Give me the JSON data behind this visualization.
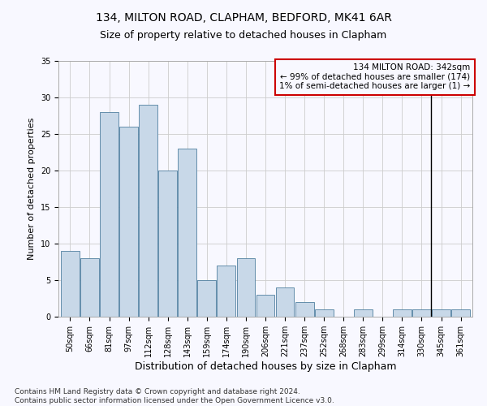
{
  "title": "134, MILTON ROAD, CLAPHAM, BEDFORD, MK41 6AR",
  "subtitle": "Size of property relative to detached houses in Clapham",
  "xlabel": "Distribution of detached houses by size in Clapham",
  "ylabel": "Number of detached properties",
  "bar_labels": [
    "50sqm",
    "66sqm",
    "81sqm",
    "97sqm",
    "112sqm",
    "128sqm",
    "143sqm",
    "159sqm",
    "174sqm",
    "190sqm",
    "206sqm",
    "221sqm",
    "237sqm",
    "252sqm",
    "268sqm",
    "283sqm",
    "299sqm",
    "314sqm",
    "330sqm",
    "345sqm",
    "361sqm"
  ],
  "bar_heights": [
    9,
    8,
    28,
    26,
    29,
    20,
    23,
    5,
    7,
    8,
    3,
    4,
    2,
    1,
    0,
    1,
    0,
    1,
    1,
    1,
    1
  ],
  "bar_color": "#c8d8e8",
  "bar_edge_color": "#5080a0",
  "subject_line_color": "#000000",
  "annotation_line1": "134 MILTON ROAD: 342sqm",
  "annotation_line2": "← 99% of detached houses are smaller (174)",
  "annotation_line3": "1% of semi-detached houses are larger (1) →",
  "annotation_box_edgecolor": "#cc0000",
  "ylim": [
    0,
    35
  ],
  "yticks": [
    0,
    5,
    10,
    15,
    20,
    25,
    30,
    35
  ],
  "grid_color": "#cccccc",
  "background_color": "#f8f8ff",
  "footnote": "Contains HM Land Registry data © Crown copyright and database right 2024.\nContains public sector information licensed under the Open Government Licence v3.0.",
  "title_fontsize": 10,
  "subtitle_fontsize": 9,
  "xlabel_fontsize": 9,
  "ylabel_fontsize": 8,
  "tick_fontsize": 7,
  "annotation_fontsize": 7.5,
  "footnote_fontsize": 6.5
}
